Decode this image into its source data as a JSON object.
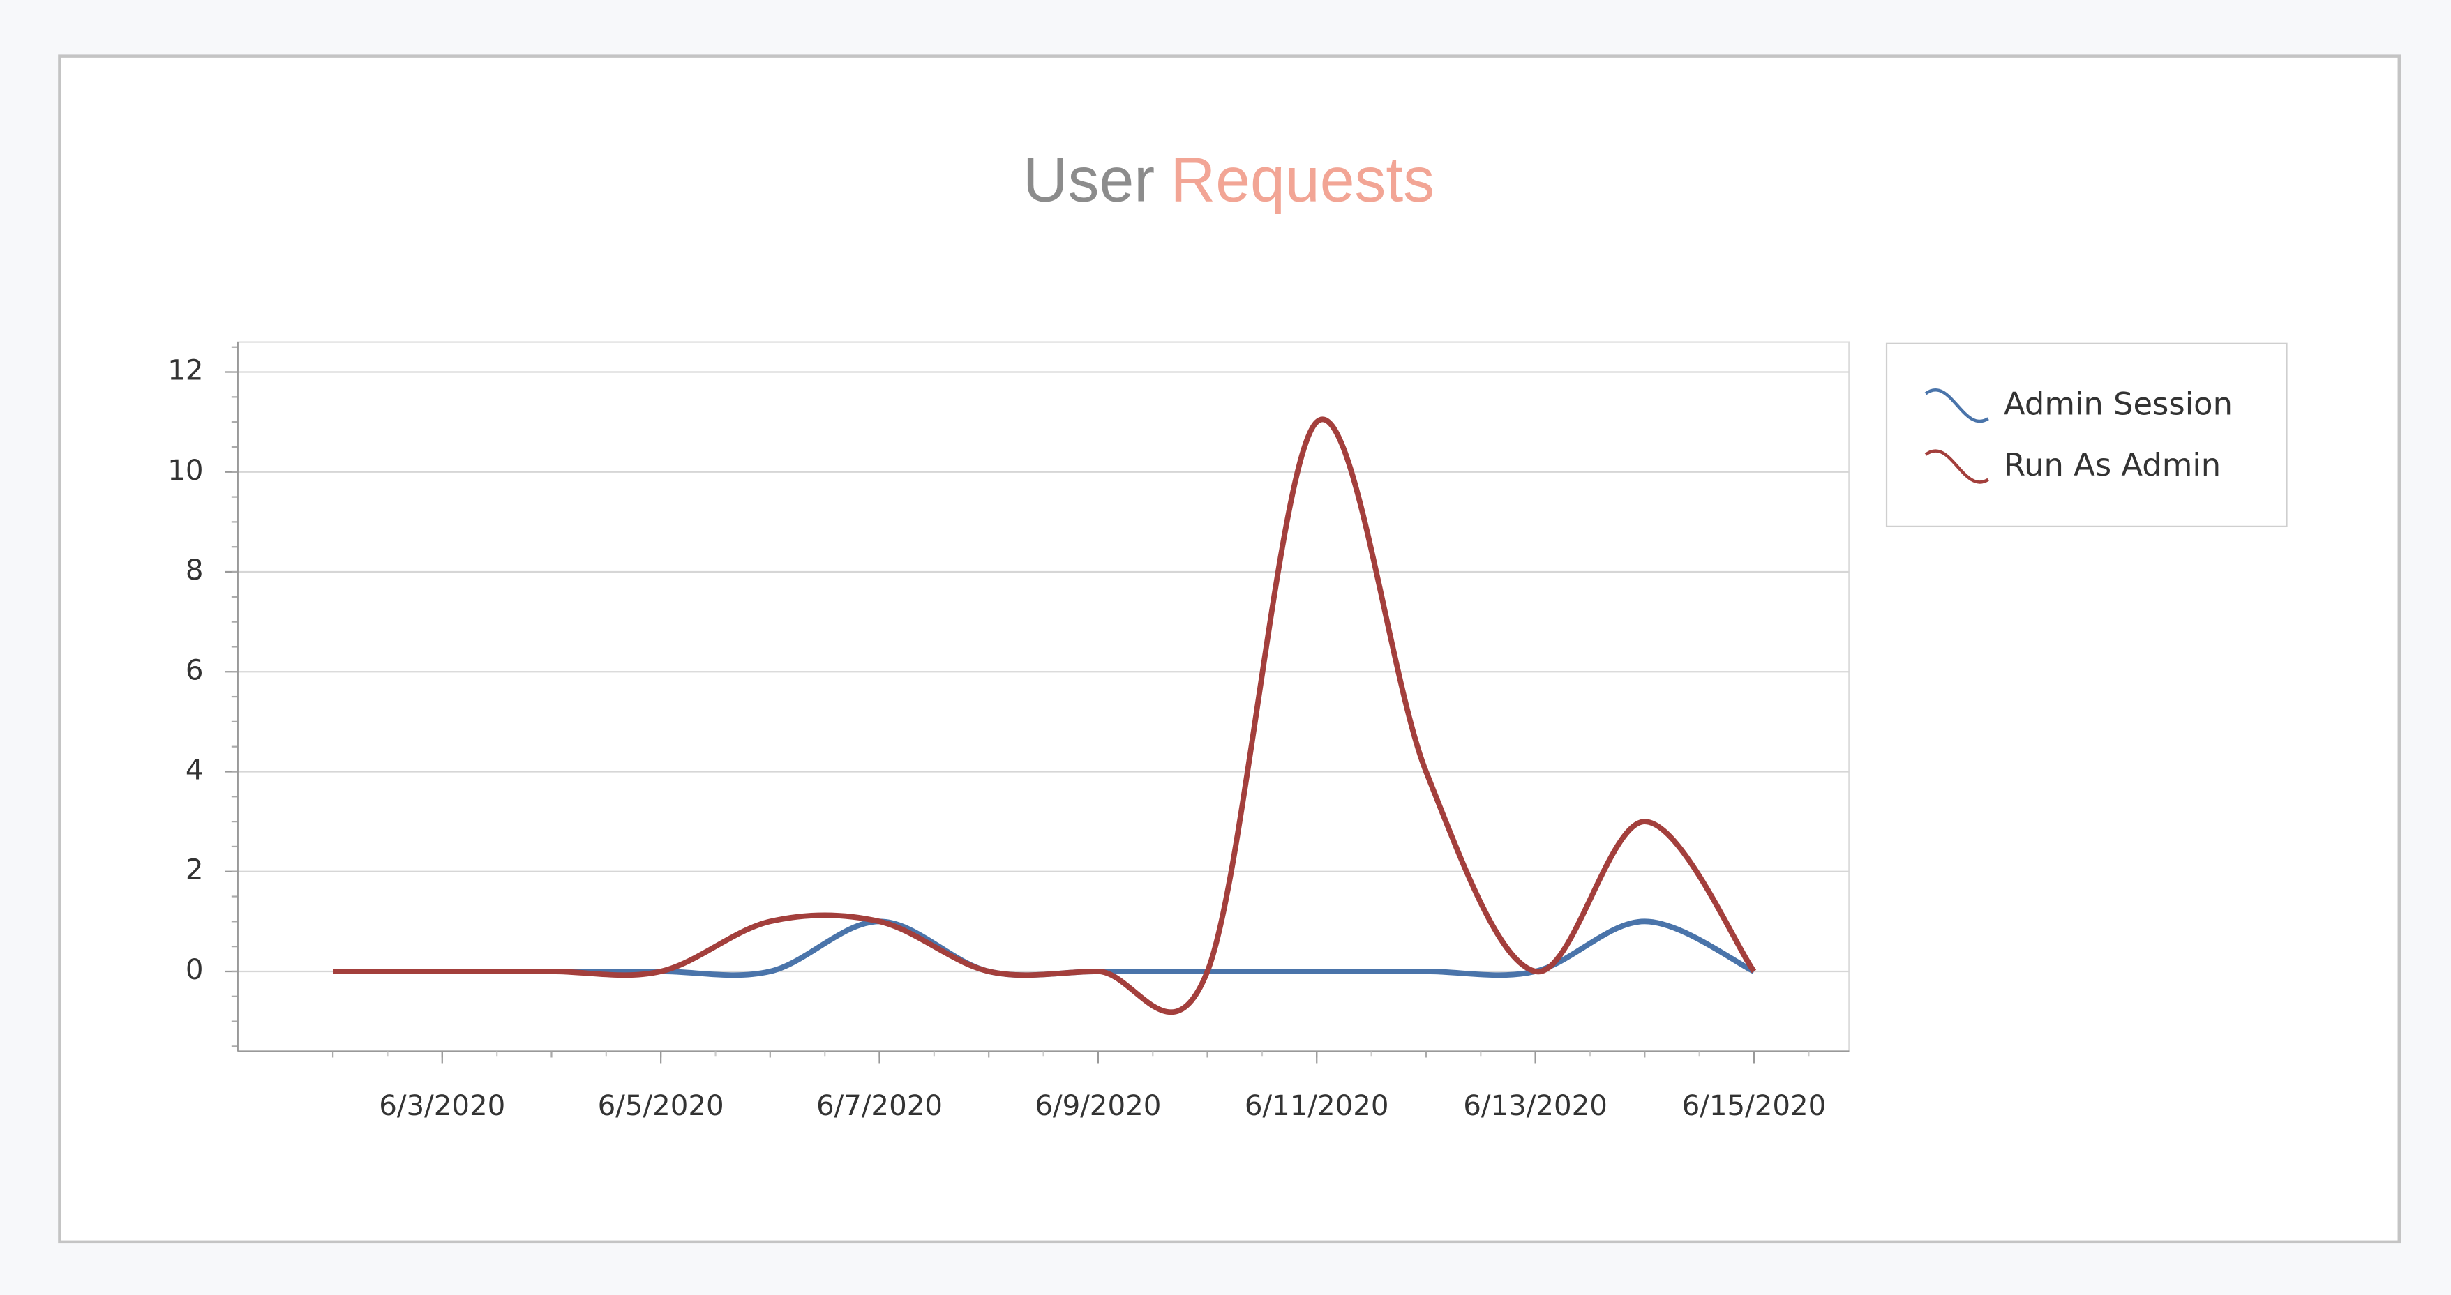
{
  "chart_data": {
    "type": "line",
    "title_parts": [
      {
        "text": "User",
        "color": "#8c8c8c"
      },
      {
        "text": "Requests",
        "color": "#f2a595"
      }
    ],
    "x": [
      "6/2/2020",
      "6/3/2020",
      "6/4/2020",
      "6/5/2020",
      "6/6/2020",
      "6/7/2020",
      "6/8/2020",
      "6/9/2020",
      "6/10/2020",
      "6/11/2020",
      "6/12/2020",
      "6/13/2020",
      "6/14/2020",
      "6/15/2020"
    ],
    "series": [
      {
        "name": "Admin Session",
        "color": "#4a74aa",
        "values": [
          0,
          0,
          0,
          0,
          0,
          1,
          0,
          0,
          0,
          0,
          0,
          0,
          1,
          0
        ]
      },
      {
        "name": "Run As Admin",
        "color": "#a33f3c",
        "values": [
          0,
          0,
          0,
          0,
          1,
          1,
          0,
          0,
          0,
          11,
          4,
          0,
          3,
          0
        ]
      }
    ],
    "xticks": [
      "6/3/2020",
      "6/5/2020",
      "6/7/2020",
      "6/9/2020",
      "6/11/2020",
      "6/13/2020",
      "6/15/2020"
    ],
    "ylim": [
      -1.6,
      12.6
    ],
    "yticks": [
      0,
      2,
      4,
      6,
      8,
      10,
      12
    ],
    "grid": true,
    "smooth": true,
    "legend": "right"
  }
}
